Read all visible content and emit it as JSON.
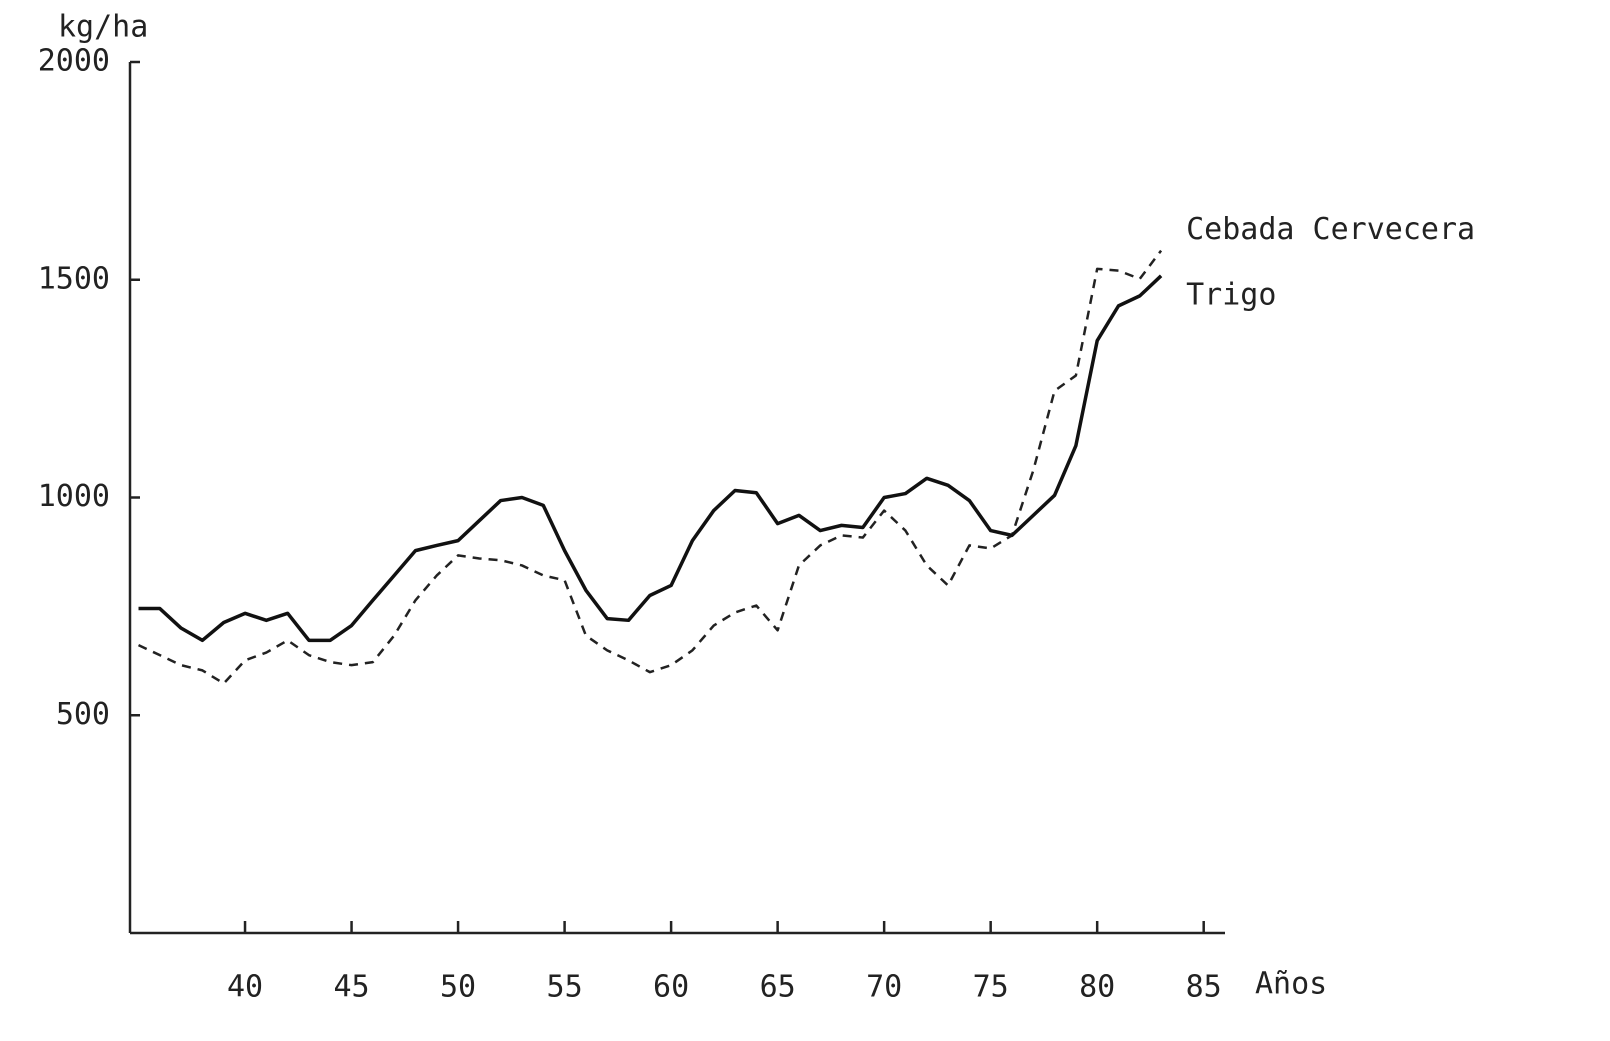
{
  "chart_data": {
    "type": "line",
    "y_label": "kg/ha",
    "x_label": "Años",
    "x": [
      35,
      36,
      37,
      38,
      39,
      40,
      41,
      42,
      43,
      44,
      45,
      46,
      47,
      48,
      49,
      50,
      51,
      52,
      53,
      54,
      55,
      56,
      57,
      58,
      59,
      60,
      61,
      62,
      63,
      64,
      65,
      66,
      67,
      68,
      69,
      70,
      71,
      72,
      73,
      74,
      75,
      76,
      77,
      78,
      79,
      80,
      81,
      82,
      83
    ],
    "series": [
      {
        "name": "Cebada Cervecera",
        "color": "#222222",
        "dash": true,
        "values": [
          661,
          638,
          615,
          603,
          573,
          626,
          644,
          672,
          638,
          622,
          615,
          622,
          683,
          764,
          821,
          867,
          860,
          856,
          844,
          821,
          810,
          683,
          649,
          626,
          599,
          615,
          649,
          706,
          736,
          752,
          695,
          844,
          890,
          913,
          908,
          970,
          924,
          844,
          798,
          890,
          883,
          913,
          1062,
          1245,
          1280,
          1525,
          1521,
          1502,
          1567
        ]
      },
      {
        "name": "Trigo",
        "color": "#111111",
        "dash": false,
        "values": [
          745,
          745,
          700,
          672,
          713,
          734,
          718,
          734,
          672,
          672,
          706,
          764,
          821,
          878,
          890,
          901,
          947,
          993,
          1000,
          982,
          878,
          787,
          722,
          718,
          775,
          798,
          901,
          970,
          1016,
          1011,
          940,
          959,
          924,
          936,
          931,
          1000,
          1009,
          1044,
          1028,
          993,
          924,
          913,
          959,
          1005,
          1119,
          1360,
          1440,
          1463,
          1509
        ]
      }
    ],
    "xlim": [
      34.6,
      86
    ],
    "xticks": [
      40,
      45,
      50,
      55,
      60,
      65,
      70,
      75,
      80,
      85
    ],
    "ylim": [
      0,
      2000
    ],
    "yticks": [
      500,
      1000,
      1500,
      2000
    ]
  }
}
